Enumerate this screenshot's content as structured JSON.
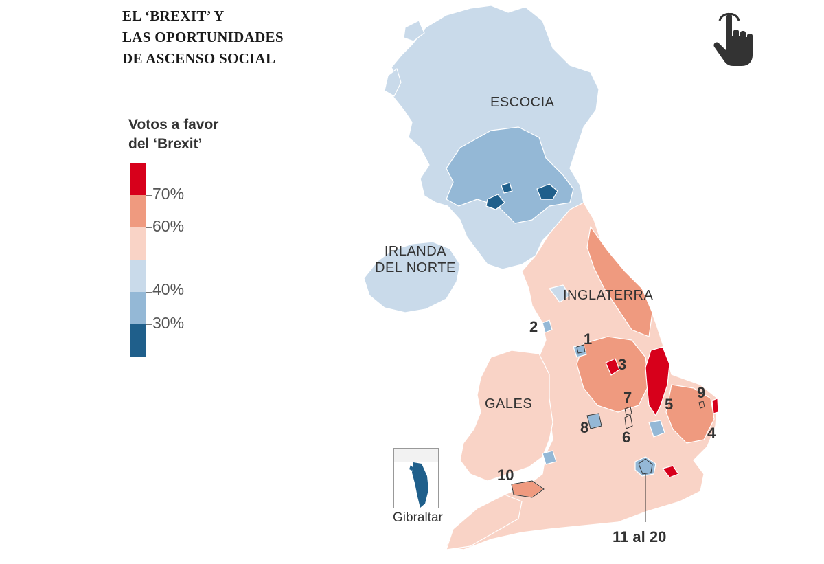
{
  "title": {
    "lines": [
      "EL ‘BREXIT’ Y",
      "LAS OPORTUNIDADES",
      "DE ASCENSO SOCIAL"
    ]
  },
  "legend": {
    "title_lines": [
      "Votos a favor",
      "del ‘Brexit’"
    ],
    "ticks": [
      "70%",
      "60%",
      "40%",
      "30%"
    ],
    "colors": [
      "#d7001b",
      "#ef9a7f",
      "#f9d3c6",
      "#c9daea",
      "#94b8d6",
      "#1f5f8b"
    ]
  },
  "regions": {
    "scotland": "ESCOCIA",
    "northern_ireland_lines": [
      "IRLANDA",
      "DEL NORTE"
    ],
    "england": "INGLATERRA",
    "wales": "GALES"
  },
  "numbered_areas": [
    "1",
    "2",
    "3",
    "4",
    "5",
    "6",
    "7",
    "8",
    "9",
    "10",
    "11 al 20"
  ],
  "inset": {
    "label": "Gibraltar"
  },
  "icons": {
    "interaction": "hand-pointer-icon"
  },
  "palette": {
    "strong_leave": "#d7001b",
    "leave": "#ef9a7f",
    "mild_leave": "#f9d3c6",
    "mild_remain": "#c9daea",
    "remain": "#94b8d6",
    "strong_remain": "#1f5f8b",
    "outline": "#ffffff"
  }
}
